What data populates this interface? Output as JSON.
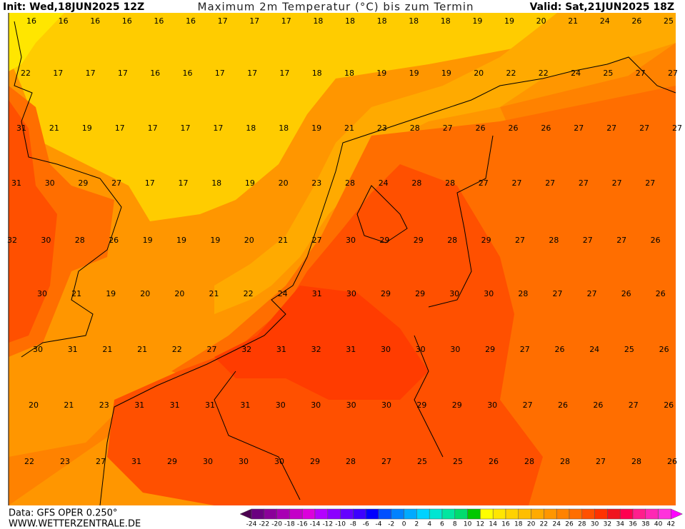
{
  "header": {
    "init": "Init: Wed,18JUN2025 12Z",
    "title": "Maximum 2m Temperatur (°C) bis zum Termin",
    "valid": "Valid: Sat,21JUN2025 18Z"
  },
  "temperature_rows": [
    [
      16,
      16,
      16,
      16,
      16,
      16,
      17,
      17,
      17,
      18,
      18,
      18,
      18,
      18,
      19,
      19,
      20,
      21,
      24,
      26,
      25
    ],
    [
      22,
      17,
      17,
      17,
      16,
      16,
      17,
      17,
      17,
      18,
      18,
      19,
      19,
      19,
      20,
      22,
      22,
      24,
      25,
      27,
      27
    ],
    [
      31,
      21,
      19,
      17,
      17,
      17,
      17,
      18,
      18,
      19,
      21,
      23,
      28,
      27,
      26,
      26,
      26,
      27,
      27,
      27,
      27
    ],
    [
      31,
      30,
      29,
      27,
      17,
      17,
      18,
      19,
      20,
      23,
      28,
      24,
      28,
      28,
      27,
      27,
      27,
      27,
      27,
      27
    ],
    [
      32,
      30,
      28,
      26,
      19,
      19,
      19,
      20,
      21,
      27,
      30,
      29,
      29,
      28,
      29,
      27,
      28,
      27,
      27,
      26
    ],
    [
      30,
      21,
      19,
      20,
      20,
      21,
      22,
      24,
      31,
      30,
      29,
      29,
      30,
      30,
      28,
      27,
      27,
      26,
      26
    ],
    [
      30,
      31,
      21,
      21,
      22,
      27,
      32,
      31,
      32,
      31,
      30,
      30,
      30,
      29,
      27,
      26,
      24,
      25,
      26
    ],
    [
      20,
      21,
      23,
      31,
      31,
      31,
      31,
      30,
      30,
      30,
      30,
      29,
      29,
      30,
      27,
      26,
      26,
      27,
      26
    ],
    [
      22,
      23,
      27,
      31,
      29,
      30,
      30,
      30,
      29,
      28,
      27,
      25,
      25,
      26,
      28,
      28,
      27,
      28,
      26
    ]
  ],
  "footer": {
    "data": "Data: GFS OPER 0.250°",
    "site": "WWW.WETTERZENTRALE.DE"
  },
  "scale": {
    "labels": [
      -24,
      -22,
      -20,
      -18,
      -16,
      -14,
      -12,
      -10,
      -8,
      -6,
      -4,
      -2,
      0,
      2,
      4,
      6,
      8,
      10,
      12,
      14,
      16,
      18,
      20,
      22,
      24,
      26,
      28,
      30,
      32,
      34,
      36,
      38,
      40,
      42
    ],
    "colors": [
      "#4b0050",
      "#6a0080",
      "#8a0099",
      "#a800b3",
      "#c400c8",
      "#dc00dc",
      "#b400ff",
      "#8c00ff",
      "#6400ff",
      "#3c00ff",
      "#0000ff",
      "#0050ff",
      "#0082ff",
      "#00aaff",
      "#00d2ff",
      "#00e6d2",
      "#00e6a0",
      "#00dc6e",
      "#00c800",
      "#ffff00",
      "#ffe600",
      "#ffd200",
      "#ffbe00",
      "#ffaa00",
      "#ff9600",
      "#ff8200",
      "#ff6e00",
      "#ff5000",
      "#ff3200",
      "#f0141e",
      "#ff0050",
      "#ff1e8c",
      "#ff28b4",
      "#ff32dc",
      "#ff00ff"
    ]
  }
}
